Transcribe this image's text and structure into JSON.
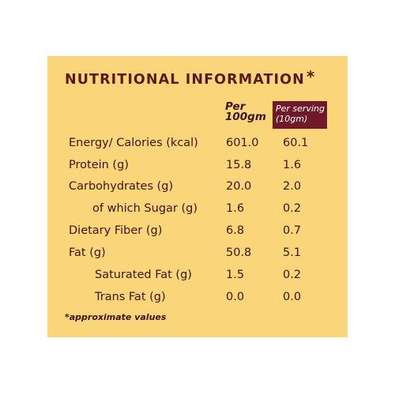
{
  "title": "NUTRITIONAL INFORMATION",
  "title_mark": "*",
  "headers": {
    "per100_line1": "Per",
    "per100_line2": "100gm",
    "serving_line1": "Per serving",
    "serving_line2": "(10gm)"
  },
  "rows": [
    {
      "label": "Energy/ Calories (kcal)",
      "per100": "601.0",
      "serving": "60.1"
    },
    {
      "label": "Protein (g)",
      "per100": "15.8",
      "serving": "1.6"
    },
    {
      "label": "Carbohydrates (g)",
      "per100": "20.0",
      "serving": "2.0"
    },
    {
      "label": "of which Sugar (g)",
      "per100": "1.6",
      "serving": "0.2"
    },
    {
      "label": "Dietary Fiber (g)",
      "per100": "6.8",
      "serving": "0.7"
    },
    {
      "label": "Fat (g)",
      "per100": "50.8",
      "serving": "5.1"
    },
    {
      "label": "Saturated Fat (g)",
      "per100": "1.5",
      "serving": "0.2"
    },
    {
      "label": "Trans Fat (g)",
      "per100": "0.0",
      "serving": "0.0"
    }
  ],
  "footnote": "*approximate values",
  "colors": {
    "panel_background": "#fad57a",
    "title_text": "#5a1a1c",
    "serving_header_background": "#6e1a2a"
  }
}
